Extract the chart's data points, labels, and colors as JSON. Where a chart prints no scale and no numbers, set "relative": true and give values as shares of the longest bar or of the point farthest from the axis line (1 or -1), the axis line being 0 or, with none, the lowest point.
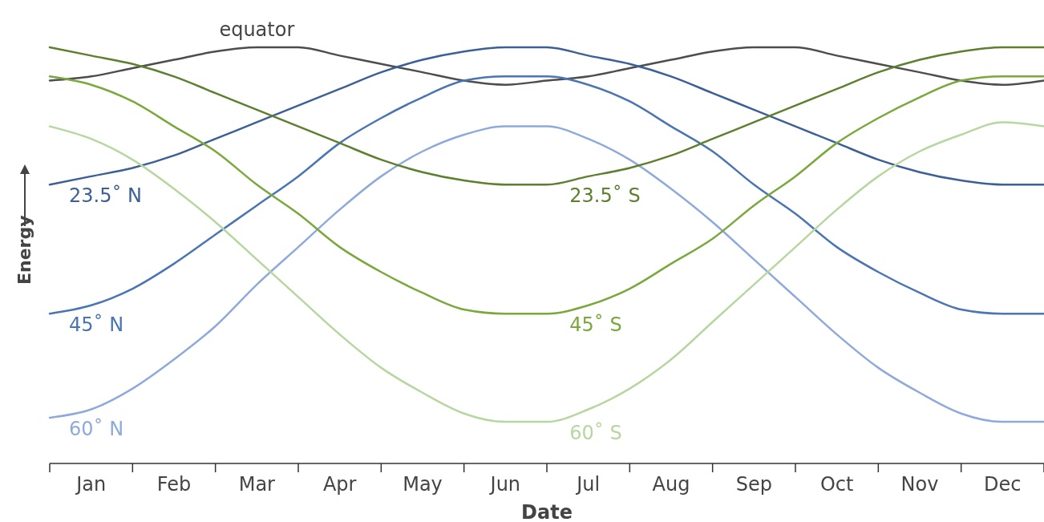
{
  "chart_data": {
    "type": "line",
    "relative": true,
    "xlabel": "Date",
    "ylabel": "Energy",
    "categories": [
      null,
      "Jan",
      null,
      "Feb",
      null,
      "Mar",
      null,
      "Apr",
      null,
      "May",
      null,
      "Jun",
      null,
      "Jul",
      null,
      "Aug",
      null,
      "Sep",
      null,
      "Oct",
      null,
      "Nov",
      null,
      "Dec",
      null
    ],
    "marker": "none",
    "line_style": "solid",
    "series": [
      {
        "name": "equator",
        "color": "#4d4d4d",
        "values": [
          0.92,
          0.93,
          0.95,
          0.97,
          0.99,
          1.0,
          1.0,
          0.98,
          0.96,
          0.94,
          0.92,
          0.91,
          0.92,
          0.93,
          0.95,
          0.97,
          0.99,
          1.0,
          1.0,
          0.98,
          0.96,
          0.94,
          0.92,
          0.91,
          0.92
        ]
      },
      {
        "name": "23.5˚ N",
        "color": "#3b5f96",
        "values": [
          0.67,
          0.69,
          0.71,
          0.74,
          0.78,
          0.82,
          0.86,
          0.9,
          0.94,
          0.97,
          0.99,
          1.0,
          1.0,
          0.98,
          0.96,
          0.93,
          0.89,
          0.85,
          0.81,
          0.77,
          0.73,
          0.7,
          0.68,
          0.67,
          0.67
        ]
      },
      {
        "name": "45˚ N",
        "color": "#4a75b4",
        "values": [
          0.36,
          0.38,
          0.42,
          0.48,
          0.55,
          0.62,
          0.69,
          0.77,
          0.83,
          0.88,
          0.92,
          0.93,
          0.93,
          0.91,
          0.87,
          0.81,
          0.75,
          0.67,
          0.6,
          0.52,
          0.46,
          0.41,
          0.37,
          0.36,
          0.36
        ]
      },
      {
        "name": "60˚ N",
        "color": "#8eaadc",
        "values": [
          0.11,
          0.13,
          0.18,
          0.25,
          0.33,
          0.43,
          0.52,
          0.61,
          0.69,
          0.75,
          0.79,
          0.81,
          0.81,
          0.78,
          0.73,
          0.66,
          0.58,
          0.49,
          0.4,
          0.31,
          0.23,
          0.17,
          0.12,
          0.1,
          0.1
        ]
      },
      {
        "name": "23.5˚ S",
        "color": "#5d7f2e",
        "values": [
          1.0,
          0.98,
          0.96,
          0.93,
          0.89,
          0.85,
          0.81,
          0.77,
          0.73,
          0.7,
          0.68,
          0.67,
          0.67,
          0.69,
          0.71,
          0.74,
          0.78,
          0.82,
          0.86,
          0.9,
          0.94,
          0.97,
          0.99,
          1.0,
          1.0
        ]
      },
      {
        "name": "45˚ S",
        "color": "#7aa83c",
        "values": [
          0.93,
          0.91,
          0.87,
          0.81,
          0.75,
          0.67,
          0.6,
          0.52,
          0.46,
          0.41,
          0.37,
          0.36,
          0.36,
          0.38,
          0.42,
          0.48,
          0.54,
          0.62,
          0.69,
          0.77,
          0.83,
          0.88,
          0.92,
          0.93,
          0.93
        ]
      },
      {
        "name": "60˚ S",
        "color": "#b8d6a0",
        "values": [
          0.81,
          0.78,
          0.73,
          0.66,
          0.58,
          0.49,
          0.4,
          0.31,
          0.23,
          0.17,
          0.12,
          0.1,
          0.1,
          0.13,
          0.18,
          0.25,
          0.34,
          0.43,
          0.52,
          0.61,
          0.69,
          0.75,
          0.79,
          0.82,
          0.81
        ]
      }
    ]
  }
}
